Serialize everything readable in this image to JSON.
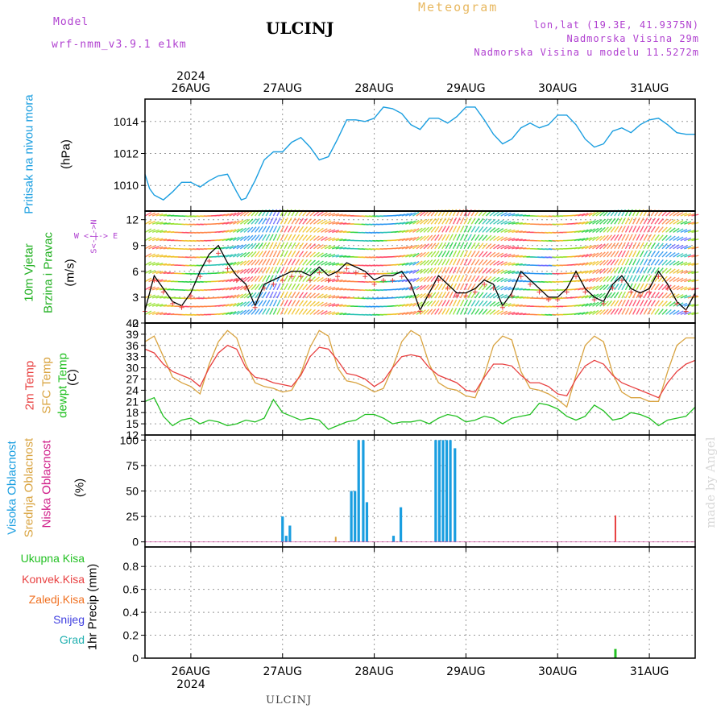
{
  "header": {
    "model_label": "Model",
    "model_name": "wrf-nmm_v3.9.1 e1km",
    "station": "ULCINJ",
    "chart_kind": "Meteogram",
    "coords": "lon,lat (19.3E, 41.9375N)",
    "elevation": "Nadmorska Visina 29m",
    "model_elevation": "Nadmorska Visina u modelu 11.5272m"
  },
  "footer": {
    "station": "ULCINJ",
    "watermark": "made by Angel"
  },
  "colors": {
    "pressure": "#1a9ee0",
    "temp2m": "#e84040",
    "sfc": "#d9a441",
    "dewpt": "#22c022",
    "cloud_high": "#1a9ee0",
    "cloud_mid": "#d9a441",
    "cloud_low": "#d0208a",
    "precip_total": "#22c022",
    "precip_conv": "#e84040",
    "precip_frz": "#f07020",
    "snow": "#4040e0",
    "hail": "#20b0b0",
    "wind_label": "#22b022",
    "dir_label": "#b040d0"
  },
  "chart_data": [
    {
      "type": "line",
      "name": "pressure",
      "ylabel": "Pritisak na nivou mora",
      "unit": "(hPa)",
      "ylim": [
        1008.4,
        1015.4
      ],
      "yticks": [
        1010,
        1012,
        1014
      ],
      "x_days": [
        "26AUG",
        "27AUG",
        "28AUG",
        "29AUG",
        "30AUG",
        "31AUG"
      ],
      "top_year": "2024",
      "bottom_year": "2024",
      "x_start": 25.5,
      "x_end": 31.5,
      "series": [
        {
          "x": [
            25.5,
            25.55,
            25.6,
            25.7,
            25.8,
            25.9,
            26.0,
            26.1,
            26.2,
            26.3,
            26.4,
            26.5,
            26.55,
            26.6,
            26.7,
            26.8,
            26.9,
            27.0,
            27.1,
            27.2,
            27.3,
            27.4,
            27.5,
            27.6,
            27.7,
            27.8,
            27.9,
            28.0,
            28.1,
            28.2,
            28.3,
            28.4,
            28.5,
            28.6,
            28.7,
            28.8,
            28.9,
            29.0,
            29.1,
            29.2,
            29.3,
            29.4,
            29.5,
            29.6,
            29.7,
            29.8,
            29.9,
            30.0,
            30.1,
            30.2,
            30.3,
            30.4,
            30.5,
            30.6,
            30.7,
            30.8,
            30.9,
            31.0,
            31.1,
            31.2,
            31.3,
            31.4,
            31.5
          ],
          "y": [
            1010.7,
            1009.8,
            1009.4,
            1009.1,
            1009.6,
            1010.2,
            1010.2,
            1009.9,
            1010.3,
            1010.6,
            1010.7,
            1009.6,
            1009.1,
            1009.2,
            1010.3,
            1011.6,
            1012.1,
            1012.1,
            1012.7,
            1013.0,
            1012.4,
            1011.6,
            1011.8,
            1012.9,
            1014.1,
            1014.1,
            1014.0,
            1014.2,
            1014.9,
            1014.8,
            1014.5,
            1013.8,
            1013.5,
            1014.2,
            1014.2,
            1013.9,
            1014.3,
            1014.9,
            1014.9,
            1014.1,
            1013.2,
            1012.6,
            1012.9,
            1013.6,
            1013.9,
            1013.6,
            1013.8,
            1014.4,
            1014.4,
            1013.8,
            1012.9,
            1012.4,
            1012.6,
            1013.4,
            1013.6,
            1013.3,
            1013.8,
            1014.1,
            1014.2,
            1013.8,
            1013.3,
            1013.2,
            1013.2
          ]
        }
      ]
    },
    {
      "type": "line",
      "name": "wind",
      "ylabel": "10m Vjetar",
      "ylabel2": "Brzina i Pravac",
      "unit": "(m/s)",
      "ylim": [
        0,
        13
      ],
      "yticks": [
        0,
        3,
        6,
        9,
        12
      ],
      "dir_key": "W <-|-> E",
      "dir_key2": "S<-|->N",
      "series": [
        {
          "name": "speed",
          "x": [
            25.5,
            25.6,
            25.7,
            25.8,
            25.9,
            26.0,
            26.1,
            26.2,
            26.3,
            26.4,
            26.5,
            26.6,
            26.7,
            26.8,
            26.9,
            27.0,
            27.1,
            27.2,
            27.3,
            27.4,
            27.5,
            27.6,
            27.7,
            27.8,
            27.9,
            28.0,
            28.1,
            28.2,
            28.3,
            28.4,
            28.5,
            28.6,
            28.7,
            28.8,
            28.9,
            29.0,
            29.1,
            29.2,
            29.3,
            29.4,
            29.5,
            29.6,
            29.7,
            29.8,
            29.9,
            30.0,
            30.1,
            30.2,
            30.3,
            30.4,
            30.5,
            30.6,
            30.7,
            30.8,
            30.9,
            31.0,
            31.1,
            31.2,
            31.3,
            31.4,
            31.5
          ],
          "y": [
            1.5,
            5.5,
            4.0,
            2.5,
            2.0,
            3.5,
            6.0,
            8.0,
            9.0,
            7.0,
            5.5,
            4.5,
            2.0,
            4.5,
            5.0,
            5.5,
            6.0,
            6.0,
            5.5,
            6.5,
            5.5,
            6.0,
            7.0,
            6.5,
            6.0,
            5.0,
            5.5,
            5.5,
            6.0,
            4.5,
            1.5,
            3.5,
            5.5,
            4.5,
            3.5,
            3.5,
            4.0,
            5.0,
            4.5,
            2.0,
            3.5,
            6.0,
            5.0,
            4.0,
            3.0,
            3.0,
            4.0,
            6.0,
            4.0,
            3.0,
            2.5,
            4.5,
            5.5,
            4.0,
            3.5,
            4.0,
            6.0,
            4.5,
            2.5,
            1.5,
            3.5
          ]
        }
      ]
    },
    {
      "type": "line",
      "name": "temperature",
      "ylabel": "2m Temp",
      "ylabel2": "SFC Temp",
      "ylabel3": "dewpt Temp",
      "unit": "(C)",
      "ylim": [
        12,
        42
      ],
      "yticks": [
        12,
        15,
        18,
        21,
        24,
        27,
        30,
        33,
        36,
        39,
        42
      ],
      "series": [
        {
          "name": "2m Temp",
          "x": [
            25.5,
            25.6,
            25.7,
            25.8,
            25.9,
            26.0,
            26.1,
            26.2,
            26.3,
            26.4,
            26.5,
            26.6,
            26.7,
            26.8,
            26.9,
            27.0,
            27.1,
            27.2,
            27.3,
            27.4,
            27.5,
            27.6,
            27.7,
            27.8,
            27.9,
            28.0,
            28.1,
            28.2,
            28.3,
            28.4,
            28.5,
            28.6,
            28.7,
            28.8,
            28.9,
            29.0,
            29.1,
            29.2,
            29.3,
            29.4,
            29.5,
            29.6,
            29.7,
            29.8,
            29.9,
            30.0,
            30.1,
            30.2,
            30.3,
            30.4,
            30.5,
            30.6,
            30.7,
            30.8,
            30.9,
            31.0,
            31.1,
            31.2,
            31.3,
            31.4,
            31.5
          ],
          "y": [
            35.0,
            34.0,
            31.0,
            29.0,
            28.0,
            27.0,
            25.0,
            30.0,
            34.0,
            36.0,
            35.0,
            30.0,
            27.5,
            27.0,
            26.0,
            25.5,
            25.0,
            28.0,
            33.0,
            35.5,
            35.0,
            32.0,
            28.5,
            28.0,
            27.0,
            25.0,
            26.5,
            30.0,
            33.0,
            33.5,
            33.0,
            30.0,
            28.0,
            27.0,
            26.0,
            24.0,
            23.5,
            27.5,
            31.0,
            31.0,
            30.5,
            28.0,
            26.0,
            26.0,
            25.0,
            23.0,
            22.5,
            27.0,
            30.5,
            32.0,
            31.0,
            28.0,
            26.0,
            25.0,
            24.0,
            23.0,
            22.0,
            26.0,
            29.0,
            31.0,
            32.0
          ]
        },
        {
          "name": "SFC Temp",
          "x": [
            25.5,
            25.6,
            25.7,
            25.8,
            25.9,
            26.0,
            26.1,
            26.2,
            26.3,
            26.4,
            26.5,
            26.6,
            26.7,
            26.8,
            26.9,
            27.0,
            27.1,
            27.2,
            27.3,
            27.4,
            27.5,
            27.6,
            27.7,
            27.8,
            27.9,
            28.0,
            28.1,
            28.2,
            28.3,
            28.4,
            28.5,
            28.6,
            28.7,
            28.8,
            28.9,
            29.0,
            29.1,
            29.2,
            29.3,
            29.4,
            29.5,
            29.6,
            29.7,
            29.8,
            29.9,
            30.0,
            30.1,
            30.2,
            30.3,
            30.4,
            30.5,
            30.6,
            30.7,
            30.8,
            30.9,
            31.0,
            31.1,
            31.2,
            31.3,
            31.4,
            31.5
          ],
          "y": [
            37.0,
            38.5,
            33.0,
            27.5,
            26.0,
            25.0,
            23.0,
            31.0,
            37.0,
            40.0,
            38.0,
            31.0,
            26.0,
            25.0,
            24.5,
            23.5,
            24.0,
            28.5,
            35.5,
            40.0,
            38.5,
            30.0,
            26.5,
            26.0,
            25.0,
            23.5,
            24.5,
            30.0,
            37.0,
            40.0,
            38.5,
            31.0,
            26.0,
            24.5,
            24.0,
            22.5,
            22.0,
            28.0,
            36.0,
            38.5,
            37.5,
            29.0,
            24.5,
            24.0,
            23.0,
            21.5,
            19.5,
            28.0,
            36.0,
            38.5,
            37.0,
            28.5,
            23.5,
            22.0,
            22.0,
            21.0,
            21.0,
            29.0,
            36.0,
            38.0,
            38.0
          ]
        },
        {
          "name": "dewpt Temp",
          "x": [
            25.5,
            25.6,
            25.7,
            25.8,
            25.9,
            26.0,
            26.1,
            26.2,
            26.3,
            26.4,
            26.5,
            26.6,
            26.7,
            26.8,
            26.9,
            27.0,
            27.1,
            27.2,
            27.3,
            27.4,
            27.5,
            27.6,
            27.7,
            27.8,
            27.9,
            28.0,
            28.1,
            28.2,
            28.3,
            28.4,
            28.5,
            28.6,
            28.7,
            28.8,
            28.9,
            29.0,
            29.1,
            29.2,
            29.3,
            29.4,
            29.5,
            29.6,
            29.7,
            29.8,
            29.9,
            30.0,
            30.1,
            30.2,
            30.3,
            30.4,
            30.5,
            30.6,
            30.7,
            30.8,
            30.9,
            31.0,
            31.1,
            31.2,
            31.3,
            31.4,
            31.5
          ],
          "y": [
            21.0,
            22.0,
            17.0,
            14.5,
            16.0,
            16.5,
            15.0,
            16.0,
            15.5,
            14.5,
            15.0,
            16.0,
            15.5,
            16.5,
            21.5,
            18.0,
            17.0,
            16.0,
            16.5,
            16.0,
            13.5,
            14.5,
            15.5,
            16.0,
            17.5,
            17.5,
            16.5,
            15.0,
            15.5,
            15.5,
            16.0,
            15.0,
            16.5,
            17.5,
            17.0,
            15.5,
            16.0,
            17.0,
            16.5,
            15.0,
            16.5,
            17.0,
            17.5,
            20.5,
            20.0,
            19.0,
            17.0,
            16.0,
            17.0,
            20.0,
            18.5,
            16.0,
            16.5,
            18.0,
            17.5,
            16.5,
            14.5,
            16.0,
            16.5,
            17.0,
            19.5
          ]
        }
      ]
    },
    {
      "type": "bar",
      "name": "cloud",
      "ylabel": "Visoka Oblacnost",
      "ylabel2": "Srednja Oblacnost",
      "ylabel3": "Niska Oblacnost",
      "unit": "(%)",
      "ylim": [
        -5,
        105
      ],
      "yticks": [
        0,
        25,
        50,
        75,
        100
      ],
      "series": [
        {
          "name": "Visoka Oblacnost",
          "x": [
            27.0,
            27.04,
            27.08,
            27.75,
            27.79,
            27.83,
            27.88,
            27.92,
            28.21,
            28.29,
            28.67,
            28.71,
            28.75,
            28.79,
            28.83,
            28.88
          ],
          "y": [
            25,
            6,
            16,
            50,
            50,
            100,
            100,
            39,
            6,
            34,
            100,
            100,
            100,
            100,
            100,
            92
          ]
        },
        {
          "name": "Srednja Oblacnost",
          "x": [
            27.58
          ],
          "y": [
            5
          ]
        },
        {
          "name": "Niska Oblacnost",
          "x": [
            30.63
          ],
          "y": [
            26
          ]
        }
      ]
    },
    {
      "type": "bar",
      "name": "precip",
      "ylabel": "1hr Precip",
      "unit": "(mm)",
      "ylim": [
        0,
        0.97
      ],
      "yticks": [
        0,
        0.2,
        0.4,
        0.6,
        0.8
      ],
      "legend": [
        "Ukupna Kisa",
        "Konvek.Kisa",
        "Zaledj.Kisa",
        "Snijeg",
        "Grad"
      ],
      "series": [
        {
          "name": "Ukupna Kisa",
          "x": [
            30.63
          ],
          "y": [
            0.08
          ]
        }
      ]
    }
  ]
}
